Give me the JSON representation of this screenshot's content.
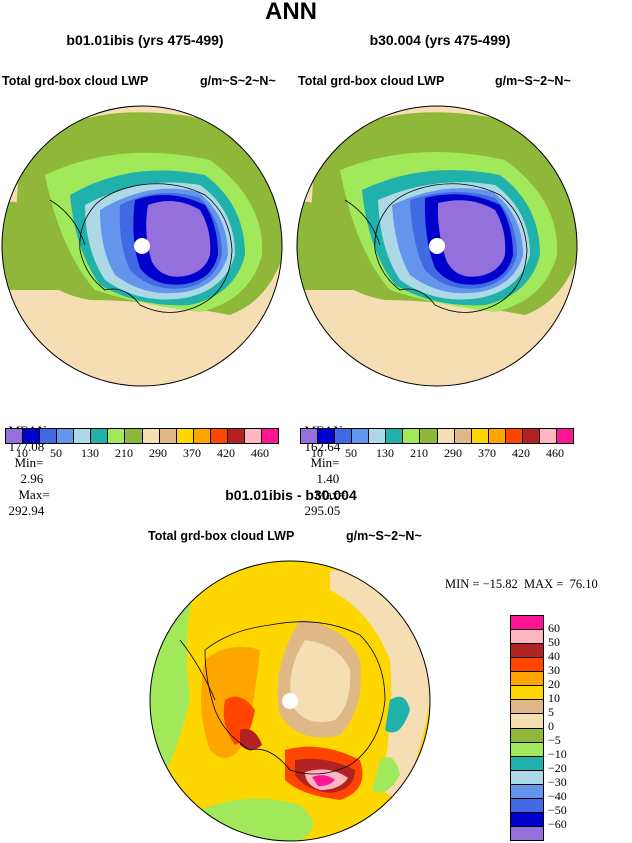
{
  "page_title": "ANN",
  "panels": [
    {
      "case": "b01.01ibis (yrs 475-499)",
      "variable": "Total grd-box cloud LWP",
      "units": "g/m~S~2~N~",
      "mean_label": "MEAN=",
      "mean": "177.08",
      "min_label": "Min=",
      "min": "2.96",
      "max_label": "Max=",
      "max": "292.94"
    },
    {
      "case": "b30.004 (yrs 475-499)",
      "variable": "Total grd-box cloud LWP",
      "units": "g/m~S~2~N~",
      "mean_label": "MEAN=",
      "mean": "162.64",
      "min_label": "Min=",
      "min": "1.40",
      "max_label": "Max=",
      "max": "295.05"
    }
  ],
  "abs_colorbar": {
    "colors": [
      "#9370db",
      "#0000cd",
      "#4169e1",
      "#6495ed",
      "#add8e6",
      "#20b2aa",
      "#a1e85b",
      "#8fb83a",
      "#f5deb3",
      "#deb887",
      "#ffd700",
      "#ffa500",
      "#ff4500",
      "#b22222",
      "#ffb6c1",
      "#ff1493"
    ],
    "tick_labels": [
      "10",
      "50",
      "130",
      "210",
      "290",
      "370",
      "420",
      "460"
    ]
  },
  "diff_panel": {
    "title": "b01.01ibis - b30.004",
    "variable": "Total grd-box cloud LWP",
    "units": "g/m~S~2~N~",
    "stats_text": "MIN = −15.82  MAX =  76.10",
    "min": "−15.82",
    "max": "76.10"
  },
  "diff_colorbar": {
    "colors_top_to_bottom": [
      "#ff1493",
      "#ffb6c1",
      "#b22222",
      "#ff4500",
      "#ffa500",
      "#ffd700",
      "#deb887",
      "#f5deb3",
      "#8fb83a",
      "#a1e85b",
      "#20b2aa",
      "#add8e6",
      "#6495ed",
      "#4169e1",
      "#0000cd",
      "#9370db"
    ],
    "tick_labels": [
      "60",
      "50",
      "40",
      "30",
      "20",
      "10",
      "5",
      "0",
      "−5",
      "−10",
      "−20",
      "−30",
      "−40",
      "−50",
      "−60"
    ]
  }
}
